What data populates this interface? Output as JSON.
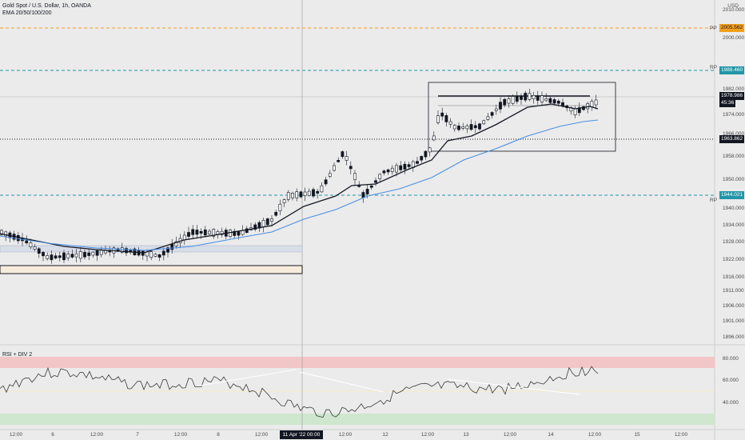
{
  "header": {
    "symbol_line": "Gold Spot / U.S. Dollar, 1h, OANDA",
    "indicator_line": "EMA 20/50/100/200",
    "currency": "USD"
  },
  "rsi": {
    "label": "RSI + DIV 2",
    "ticks": [
      "80.000",
      "60.000",
      "40.000"
    ]
  },
  "price_axis": {
    "ticks": [
      "2010.000",
      "2000.000",
      "1988.460",
      "1982.000",
      "1974.000",
      "1966.000",
      "1958.000",
      "1950.000",
      "1940.000",
      "1934.000",
      "1928.000",
      "1922.000",
      "1916.000",
      "1911.000",
      "1906.000",
      "1901.000",
      "1896.000"
    ]
  },
  "price_tags": [
    {
      "text": "2005.562",
      "bg": "#f59f1a",
      "fg": "#131722"
    },
    {
      "text": "1988.460",
      "bg": "#2196a8",
      "fg": "#ffffff"
    },
    {
      "text": "1978.986",
      "bg": "#131722",
      "fg": "#ffffff"
    },
    {
      "text": "45:36",
      "bg": "#131722",
      "fg": "#ffffff"
    },
    {
      "text": "1963.862",
      "bg": "#131722",
      "fg": "#ffffff"
    },
    {
      "text": "1944.021",
      "bg": "#2196a8",
      "fg": "#ffffff"
    }
  ],
  "line_labels": [
    "PP",
    "RP",
    "RP"
  ],
  "time_axis": {
    "ticks": [
      "12:00",
      "6",
      "12:00",
      "7",
      "12:00",
      "8",
      "12:00",
      "11 Apr '22",
      "00:00",
      "12:00",
      "12",
      "12:00",
      "13",
      "12:00",
      "14",
      "12:00",
      "15",
      "12:00"
    ],
    "cursor_label": "11 Apr '22   00:00"
  },
  "colors": {
    "background": "#ebebeb",
    "candle": "#131722",
    "ema_fast": "#131722",
    "ema_slow": "#4a90e2",
    "pivot_orange": "#f59f1a",
    "pivot_teal": "#2196a8",
    "rsi_overbought": "#f2c6c6",
    "rsi_oversold": "#cfe6cf"
  }
}
